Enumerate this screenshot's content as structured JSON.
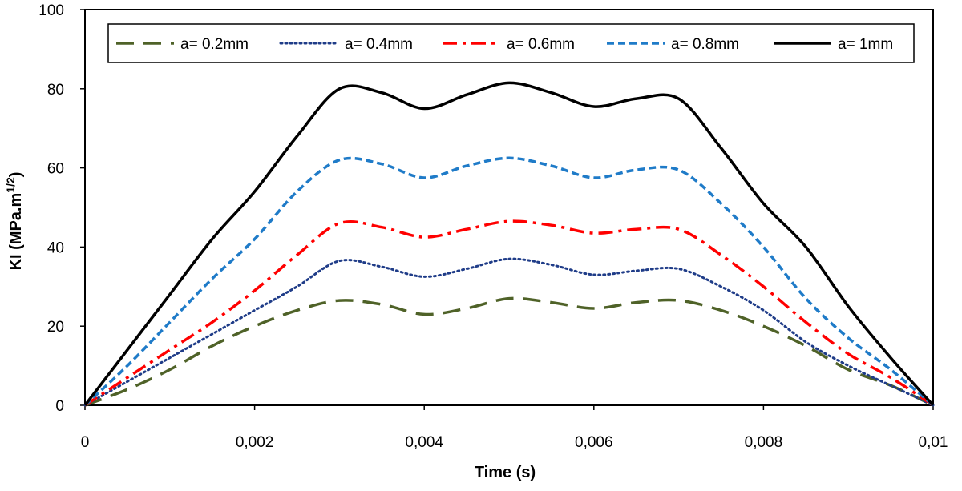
{
  "chart_data": {
    "type": "line",
    "title": "",
    "xlabel": "Time (s)",
    "ylabel": "KI (MPa.m",
    "ylabel_superscript": "1/2",
    "ylabel_suffix": ")",
    "xlim": [
      0,
      0.01
    ],
    "ylim": [
      0,
      100
    ],
    "x_ticks": [
      0,
      0.002,
      0.004,
      0.006,
      0.008,
      0.01
    ],
    "x_tick_labels": [
      "0",
      "0,002",
      "0,004",
      "0,006",
      "0,008",
      "0,01"
    ],
    "y_ticks": [
      0,
      20,
      40,
      60,
      80,
      100
    ],
    "y_tick_labels": [
      "0",
      "20",
      "40",
      "60",
      "80",
      "100"
    ],
    "grid": false,
    "legend_position": "top",
    "series": [
      {
        "name": "a= 0.2mm",
        "color": "#4f6228",
        "dash": "long-dash",
        "x": [
          0,
          0.0005,
          0.001,
          0.0015,
          0.002,
          0.0025,
          0.003,
          0.0035,
          0.004,
          0.0045,
          0.005,
          0.0055,
          0.006,
          0.0065,
          0.007,
          0.0075,
          0.008,
          0.0085,
          0.009,
          0.0095,
          0.01
        ],
        "y": [
          0,
          4,
          9,
          15,
          20,
          24,
          26.5,
          25.5,
          23,
          24.5,
          27,
          26,
          24.5,
          26,
          26.5,
          24,
          20,
          15,
          9,
          5,
          0
        ]
      },
      {
        "name": "a= 0.4mm",
        "color": "#1f3c88",
        "dash": "dotted",
        "x": [
          0,
          0.0005,
          0.001,
          0.0015,
          0.002,
          0.0025,
          0.003,
          0.0035,
          0.004,
          0.0045,
          0.005,
          0.0055,
          0.006,
          0.0065,
          0.007,
          0.0075,
          0.008,
          0.0085,
          0.009,
          0.0095,
          0.01
        ],
        "y": [
          0,
          6,
          12,
          18,
          24,
          30,
          36.5,
          35,
          32.5,
          34.5,
          37,
          35.5,
          33,
          34,
          34.5,
          30,
          24,
          16,
          10,
          5,
          0
        ]
      },
      {
        "name": "a= 0.6mm",
        "color": "#ff0000",
        "dash": "dash-dot",
        "x": [
          0,
          0.0005,
          0.001,
          0.0015,
          0.002,
          0.0025,
          0.003,
          0.0035,
          0.004,
          0.0045,
          0.005,
          0.0055,
          0.006,
          0.0065,
          0.007,
          0.0075,
          0.008,
          0.0085,
          0.009,
          0.0095,
          0.01
        ],
        "y": [
          0,
          7,
          14,
          21,
          29,
          38,
          46,
          45,
          42.5,
          44.5,
          46.5,
          45.5,
          43.5,
          44.5,
          44.5,
          38,
          30,
          21,
          13,
          7,
          0
        ]
      },
      {
        "name": "a= 0.8mm",
        "color": "#1f7bc8",
        "dash": "short-dash",
        "x": [
          0,
          0.0005,
          0.001,
          0.0015,
          0.002,
          0.0025,
          0.003,
          0.0035,
          0.004,
          0.0045,
          0.005,
          0.0055,
          0.006,
          0.0065,
          0.007,
          0.0075,
          0.008,
          0.0085,
          0.009,
          0.0095,
          0.01
        ],
        "y": [
          0,
          10,
          21,
          32,
          42,
          54,
          62,
          61,
          57.5,
          60.5,
          62.5,
          60.5,
          57.5,
          59.5,
          59.5,
          51,
          40,
          27,
          17,
          9,
          0
        ]
      },
      {
        "name": "a= 1mm",
        "color": "#000000",
        "dash": "solid",
        "x": [
          0,
          0.0005,
          0.001,
          0.0015,
          0.002,
          0.0025,
          0.003,
          0.0035,
          0.004,
          0.0045,
          0.005,
          0.0055,
          0.006,
          0.0065,
          0.007,
          0.0075,
          0.008,
          0.0085,
          0.009,
          0.0095,
          0.01
        ],
        "y": [
          0,
          14,
          28,
          42,
          54,
          68,
          80,
          79,
          75,
          78.5,
          81.5,
          79,
          75.5,
          77.5,
          77.5,
          65,
          51,
          40,
          25,
          12,
          0
        ]
      }
    ]
  }
}
